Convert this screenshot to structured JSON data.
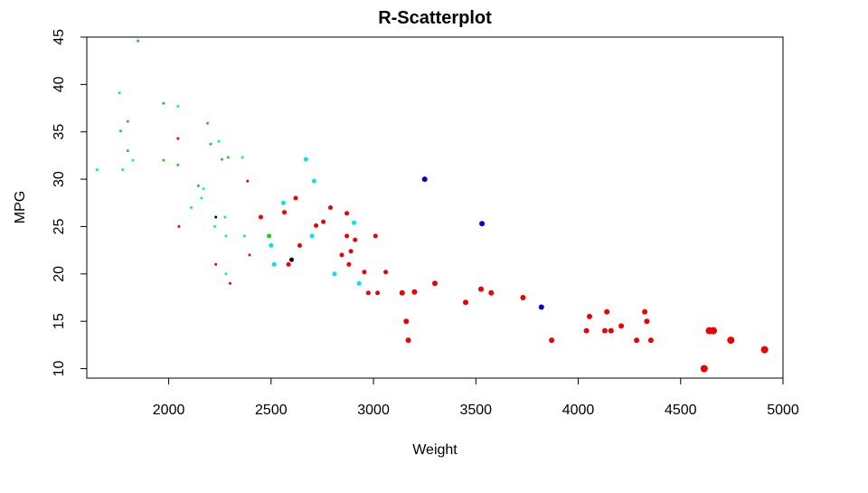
{
  "chart_data": {
    "type": "scatter",
    "title": "R-Scatterplot",
    "xlabel": "Weight",
    "ylabel": "MPG",
    "xlim": [
      1600,
      5000
    ],
    "ylim": [
      9,
      45
    ],
    "xticks": [
      2000,
      2500,
      3000,
      3500,
      4000,
      4500,
      5000
    ],
    "yticks": [
      10,
      15,
      20,
      25,
      30,
      35,
      40,
      45
    ],
    "grid": false,
    "colors": {
      "red": "#ee0000",
      "green": "#22cc22",
      "cyan": "#00e5ee",
      "blue": "#0000dd",
      "black": "#000000"
    },
    "points": [
      {
        "x": 1850,
        "y": 44.6,
        "color": "green",
        "size": 1.5
      },
      {
        "x": 1760,
        "y": 39.1,
        "color": "cyan",
        "size": 1.5
      },
      {
        "x": 1975,
        "y": 38.0,
        "color": "green",
        "size": 1.5
      },
      {
        "x": 2045,
        "y": 37.7,
        "color": "cyan",
        "size": 1.5
      },
      {
        "x": 1800,
        "y": 36.1,
        "color": "green",
        "size": 1.5
      },
      {
        "x": 2190,
        "y": 35.9,
        "color": "green",
        "size": 1.5
      },
      {
        "x": 1765,
        "y": 35.1,
        "color": "green",
        "size": 1.5
      },
      {
        "x": 2045,
        "y": 34.3,
        "color": "red",
        "size": 1.5
      },
      {
        "x": 2245,
        "y": 34.0,
        "color": "cyan",
        "size": 1.5
      },
      {
        "x": 2205,
        "y": 33.7,
        "color": "green",
        "size": 1.5
      },
      {
        "x": 1800,
        "y": 33.0,
        "color": "green",
        "size": 1.5
      },
      {
        "x": 2360,
        "y": 32.3,
        "color": "cyan",
        "size": 1.5
      },
      {
        "x": 2290,
        "y": 32.3,
        "color": "green",
        "size": 1.5
      },
      {
        "x": 2260,
        "y": 32.1,
        "color": "green",
        "size": 1.5
      },
      {
        "x": 2670,
        "y": 32.1,
        "color": "cyan",
        "size": 2.5
      },
      {
        "x": 1975,
        "y": 32.0,
        "color": "green",
        "size": 1.5
      },
      {
        "x": 1825,
        "y": 32.0,
        "color": "cyan",
        "size": 1.5
      },
      {
        "x": 2045,
        "y": 31.5,
        "color": "green",
        "size": 1.5
      },
      {
        "x": 1650,
        "y": 31.0,
        "color": "cyan",
        "size": 1.5
      },
      {
        "x": 1775,
        "y": 31.0,
        "color": "cyan",
        "size": 1.5
      },
      {
        "x": 3250,
        "y": 30.0,
        "color": "blue",
        "size": 3
      },
      {
        "x": 2385,
        "y": 29.8,
        "color": "red",
        "size": 1.5
      },
      {
        "x": 2710,
        "y": 29.8,
        "color": "cyan",
        "size": 2.5
      },
      {
        "x": 2145,
        "y": 29.3,
        "color": "green",
        "size": 1.5
      },
      {
        "x": 2170,
        "y": 29.0,
        "color": "cyan",
        "size": 1.5
      },
      {
        "x": 2620,
        "y": 28.0,
        "color": "red",
        "size": 2.5
      },
      {
        "x": 2160,
        "y": 28.0,
        "color": "cyan",
        "size": 1.5
      },
      {
        "x": 2560,
        "y": 27.5,
        "color": "cyan",
        "size": 2.5
      },
      {
        "x": 2790,
        "y": 27.0,
        "color": "red",
        "size": 2.5
      },
      {
        "x": 2110,
        "y": 27.0,
        "color": "cyan",
        "size": 1.5
      },
      {
        "x": 2565,
        "y": 26.5,
        "color": "red",
        "size": 2.5
      },
      {
        "x": 2870,
        "y": 26.4,
        "color": "red",
        "size": 2.5
      },
      {
        "x": 2450,
        "y": 26.0,
        "color": "red",
        "size": 2.5
      },
      {
        "x": 2230,
        "y": 26.0,
        "color": "black",
        "size": 1.5
      },
      {
        "x": 2275,
        "y": 26.0,
        "color": "cyan",
        "size": 1.5
      },
      {
        "x": 2755,
        "y": 25.5,
        "color": "red",
        "size": 2.5
      },
      {
        "x": 2905,
        "y": 25.4,
        "color": "cyan",
        "size": 2.5
      },
      {
        "x": 3530,
        "y": 25.3,
        "color": "blue",
        "size": 3
      },
      {
        "x": 2720,
        "y": 25.1,
        "color": "red",
        "size": 2.5
      },
      {
        "x": 2050,
        "y": 25.0,
        "color": "red",
        "size": 1.5
      },
      {
        "x": 2225,
        "y": 25.0,
        "color": "cyan",
        "size": 1.5
      },
      {
        "x": 2490,
        "y": 24.0,
        "color": "green",
        "size": 2.5
      },
      {
        "x": 2700,
        "y": 24.0,
        "color": "cyan",
        "size": 2.5
      },
      {
        "x": 3010,
        "y": 24.0,
        "color": "red",
        "size": 2.5
      },
      {
        "x": 2870,
        "y": 24.0,
        "color": "red",
        "size": 2.5
      },
      {
        "x": 2280,
        "y": 24.0,
        "color": "cyan",
        "size": 1.5
      },
      {
        "x": 2370,
        "y": 24.0,
        "color": "cyan",
        "size": 1.5
      },
      {
        "x": 2910,
        "y": 23.6,
        "color": "red",
        "size": 2.5
      },
      {
        "x": 2500,
        "y": 23.0,
        "color": "cyan",
        "size": 2.5
      },
      {
        "x": 2640,
        "y": 23.0,
        "color": "red",
        "size": 2.5
      },
      {
        "x": 2890,
        "y": 22.4,
        "color": "red",
        "size": 2.5
      },
      {
        "x": 2845,
        "y": 22.0,
        "color": "red",
        "size": 2.5
      },
      {
        "x": 2395,
        "y": 22.0,
        "color": "red",
        "size": 1.5
      },
      {
        "x": 2600,
        "y": 21.5,
        "color": "black",
        "size": 2.5
      },
      {
        "x": 2515,
        "y": 21.0,
        "color": "cyan",
        "size": 2.5
      },
      {
        "x": 2585,
        "y": 21.0,
        "color": "red",
        "size": 2.5
      },
      {
        "x": 2880,
        "y": 21.0,
        "color": "red",
        "size": 2.5
      },
      {
        "x": 2230,
        "y": 21.0,
        "color": "red",
        "size": 1.5
      },
      {
        "x": 2955,
        "y": 20.2,
        "color": "red",
        "size": 2.5
      },
      {
        "x": 3060,
        "y": 20.2,
        "color": "red",
        "size": 2.5
      },
      {
        "x": 2810,
        "y": 20.0,
        "color": "cyan",
        "size": 2.5
      },
      {
        "x": 2280,
        "y": 20.0,
        "color": "cyan",
        "size": 1.5
      },
      {
        "x": 2300,
        "y": 19.0,
        "color": "red",
        "size": 1.5
      },
      {
        "x": 2930,
        "y": 19.0,
        "color": "cyan",
        "size": 2.5
      },
      {
        "x": 3300,
        "y": 19.0,
        "color": "red",
        "size": 3
      },
      {
        "x": 3525,
        "y": 18.4,
        "color": "red",
        "size": 3
      },
      {
        "x": 3140,
        "y": 18.0,
        "color": "red",
        "size": 3
      },
      {
        "x": 3200,
        "y": 18.1,
        "color": "red",
        "size": 3
      },
      {
        "x": 3575,
        "y": 18.0,
        "color": "red",
        "size": 3
      },
      {
        "x": 2975,
        "y": 18.0,
        "color": "red",
        "size": 2.5
      },
      {
        "x": 3020,
        "y": 18.0,
        "color": "red",
        "size": 2.5
      },
      {
        "x": 3730,
        "y": 17.5,
        "color": "red",
        "size": 3
      },
      {
        "x": 3450,
        "y": 17.0,
        "color": "red",
        "size": 3
      },
      {
        "x": 3820,
        "y": 16.5,
        "color": "blue",
        "size": 3
      },
      {
        "x": 4140,
        "y": 16.0,
        "color": "red",
        "size": 3
      },
      {
        "x": 4325,
        "y": 16.0,
        "color": "red",
        "size": 3
      },
      {
        "x": 4055,
        "y": 15.5,
        "color": "red",
        "size": 3
      },
      {
        "x": 3160,
        "y": 15.0,
        "color": "red",
        "size": 3
      },
      {
        "x": 4335,
        "y": 15.0,
        "color": "red",
        "size": 3
      },
      {
        "x": 4210,
        "y": 14.5,
        "color": "red",
        "size": 3
      },
      {
        "x": 4040,
        "y": 14.0,
        "color": "red",
        "size": 3
      },
      {
        "x": 4130,
        "y": 14.0,
        "color": "red",
        "size": 3
      },
      {
        "x": 4160,
        "y": 14.0,
        "color": "red",
        "size": 3
      },
      {
        "x": 4640,
        "y": 14.0,
        "color": "red",
        "size": 4
      },
      {
        "x": 4660,
        "y": 14.0,
        "color": "red",
        "size": 4
      },
      {
        "x": 3170,
        "y": 13.0,
        "color": "red",
        "size": 3
      },
      {
        "x": 3870,
        "y": 13.0,
        "color": "red",
        "size": 3
      },
      {
        "x": 4285,
        "y": 13.0,
        "color": "red",
        "size": 3
      },
      {
        "x": 4355,
        "y": 13.0,
        "color": "red",
        "size": 3
      },
      {
        "x": 4745,
        "y": 13.0,
        "color": "red",
        "size": 4
      },
      {
        "x": 4910,
        "y": 12.0,
        "color": "red",
        "size": 4
      },
      {
        "x": 4615,
        "y": 10.0,
        "color": "red",
        "size": 4
      }
    ]
  }
}
